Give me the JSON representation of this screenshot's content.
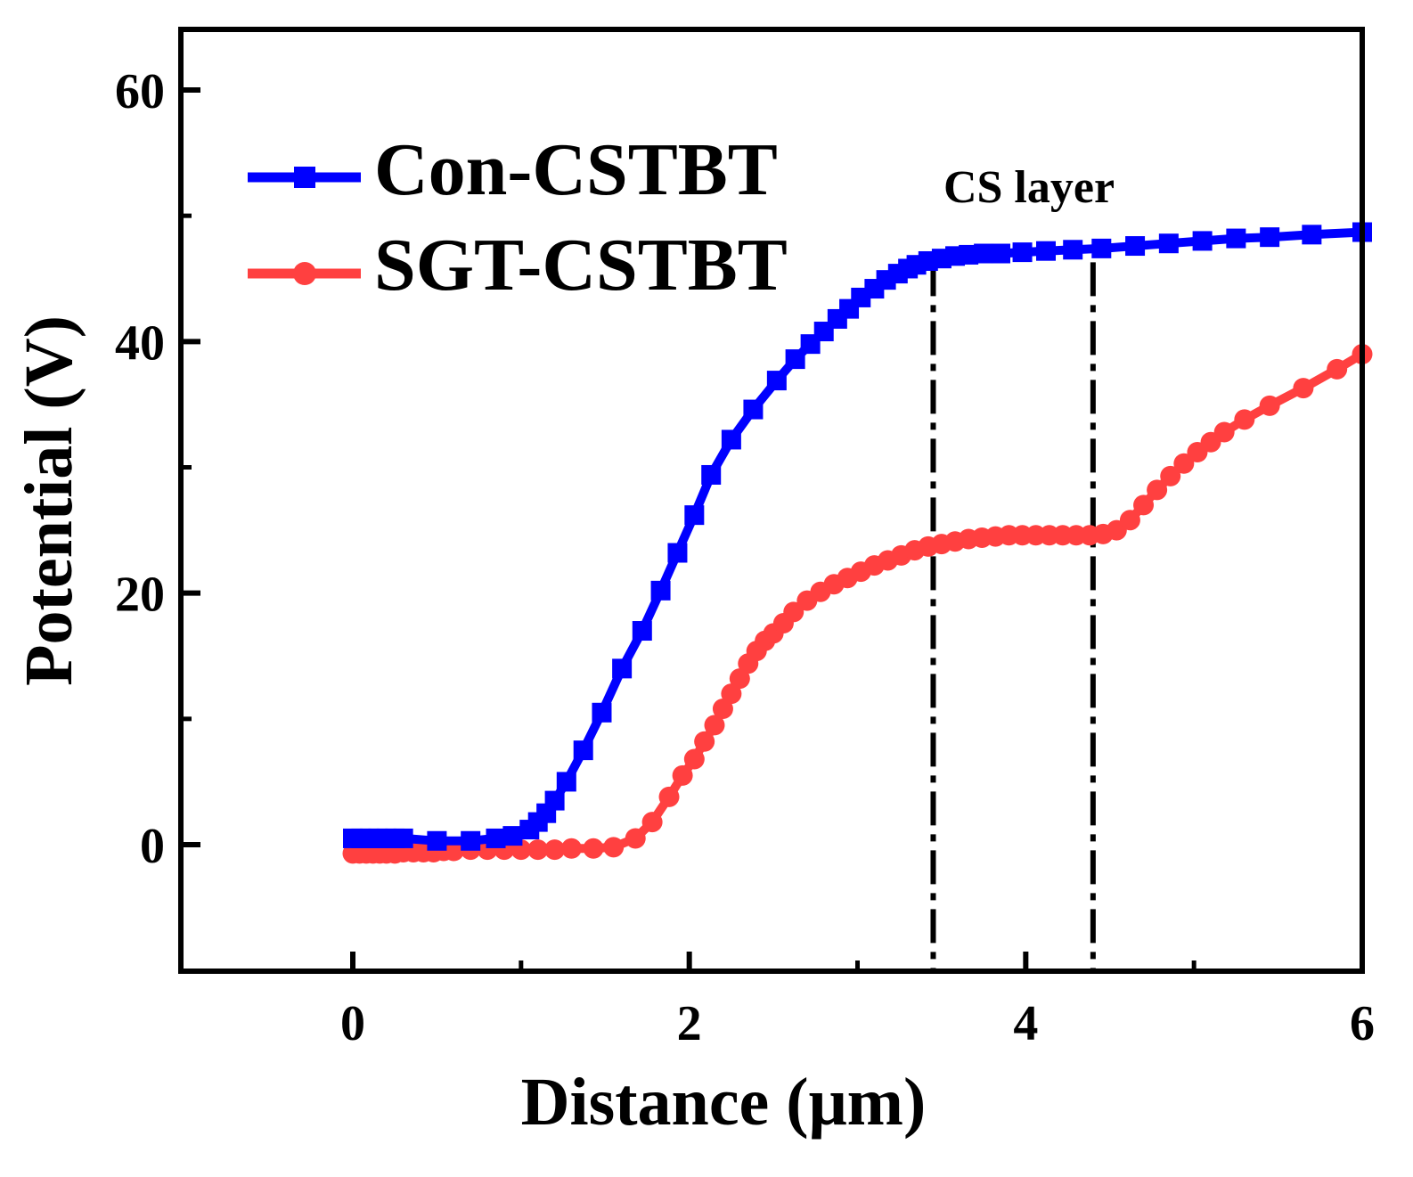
{
  "chart_data": {
    "type": "line",
    "title": "",
    "xlabel": "Distance (μm)",
    "ylabel": "Potential (V)",
    "xlim": [
      -1,
      6
    ],
    "ylim": [
      -10,
      66
    ],
    "xticks": [
      0,
      2,
      4,
      6
    ],
    "yticks": [
      0,
      20,
      40,
      60
    ],
    "xtick_labels": [
      "0",
      "2",
      "4",
      "6"
    ],
    "ytick_labels": [
      "0",
      "20",
      "40",
      "60"
    ],
    "grid": false,
    "legend_position": "top-left",
    "annotation": "CS layer",
    "cs_layer_bounds": [
      3.45,
      4.4
    ],
    "series": [
      {
        "name": "Con-CSTBT",
        "color": "#0000ff",
        "marker": "square",
        "x": [
          0,
          0.05,
          0.1,
          0.15,
          0.2,
          0.25,
          0.3,
          0.5,
          0.7,
          0.85,
          0.95,
          1.05,
          1.1,
          1.15,
          1.2,
          1.27,
          1.37,
          1.48,
          1.6,
          1.72,
          1.83,
          1.93,
          2.03,
          2.13,
          2.25,
          2.38,
          2.52,
          2.63,
          2.72,
          2.8,
          2.88,
          2.95,
          3.02,
          3.1,
          3.17,
          3.24,
          3.3,
          3.35,
          3.42,
          3.5,
          3.58,
          3.66,
          3.75,
          3.85,
          3.98,
          4.12,
          4.28,
          4.45,
          4.65,
          4.85,
          5.05,
          5.25,
          5.45,
          5.7,
          6.0
        ],
        "y": [
          0.5,
          0.5,
          0.5,
          0.5,
          0.5,
          0.5,
          0.5,
          0.3,
          0.3,
          0.5,
          0.7,
          1.2,
          1.8,
          2.5,
          3.5,
          5.0,
          7.5,
          10.5,
          14.0,
          17.0,
          20.2,
          23.2,
          26.2,
          29.4,
          32.2,
          34.6,
          36.9,
          38.6,
          39.8,
          40.8,
          41.8,
          42.6,
          43.5,
          44.2,
          44.9,
          45.4,
          45.8,
          46.1,
          46.4,
          46.6,
          46.8,
          46.9,
          47.0,
          47.0,
          47.1,
          47.2,
          47.3,
          47.4,
          47.6,
          47.8,
          48.0,
          48.2,
          48.3,
          48.5,
          48.7
        ]
      },
      {
        "name": "SGT-CSTBT",
        "color": "#ff4040",
        "marker": "circle",
        "x": [
          0,
          0.04,
          0.08,
          0.12,
          0.16,
          0.2,
          0.25,
          0.3,
          0.36,
          0.42,
          0.48,
          0.54,
          0.6,
          0.7,
          0.8,
          0.9,
          1.0,
          1.1,
          1.2,
          1.3,
          1.43,
          1.55,
          1.68,
          1.78,
          1.88,
          1.96,
          2.03,
          2.09,
          2.15,
          2.2,
          2.25,
          2.3,
          2.35,
          2.4,
          2.45,
          2.5,
          2.56,
          2.62,
          2.7,
          2.78,
          2.86,
          2.94,
          3.02,
          3.1,
          3.18,
          3.26,
          3.34,
          3.42,
          3.5,
          3.58,
          3.66,
          3.74,
          3.82,
          3.9,
          3.98,
          4.06,
          4.14,
          4.22,
          4.3,
          4.38,
          4.46,
          4.54,
          4.62,
          4.7,
          4.78,
          4.86,
          4.94,
          5.02,
          5.1,
          5.18,
          5.3,
          5.45,
          5.65,
          5.85,
          6.0
        ],
        "y": [
          -0.7,
          -0.7,
          -0.7,
          -0.7,
          -0.7,
          -0.7,
          -0.7,
          -0.6,
          -0.6,
          -0.6,
          -0.6,
          -0.5,
          -0.5,
          -0.4,
          -0.4,
          -0.4,
          -0.4,
          -0.4,
          -0.4,
          -0.3,
          -0.3,
          -0.2,
          0.5,
          1.8,
          3.8,
          5.5,
          6.8,
          8.2,
          9.5,
          10.8,
          12.0,
          13.2,
          14.4,
          15.4,
          16.2,
          16.8,
          17.6,
          18.5,
          19.4,
          20.1,
          20.7,
          21.2,
          21.7,
          22.2,
          22.6,
          23.0,
          23.4,
          23.7,
          23.9,
          24.1,
          24.3,
          24.4,
          24.5,
          24.6,
          24.6,
          24.6,
          24.6,
          24.6,
          24.6,
          24.6,
          24.7,
          25.0,
          25.8,
          27.0,
          28.2,
          29.3,
          30.3,
          31.2,
          32.0,
          32.8,
          33.8,
          34.9,
          36.3,
          37.8,
          39.0
        ]
      }
    ]
  }
}
